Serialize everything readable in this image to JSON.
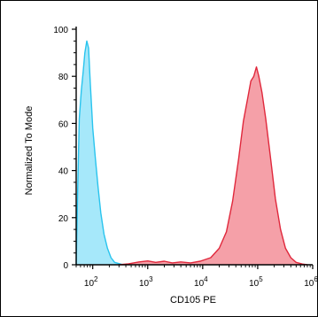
{
  "chart_data": {
    "type": "area",
    "title": "",
    "xlabel": "CD105 PE",
    "ylabel": "Normalized To Mode",
    "x_scale": "log",
    "xlim": [
      50,
      1000000
    ],
    "ylim": [
      0,
      100
    ],
    "y_ticks": [
      0,
      20,
      40,
      60,
      80,
      100
    ],
    "x_ticks": [
      {
        "base": "10",
        "exp": "2",
        "value": 100
      },
      {
        "base": "10",
        "exp": "3",
        "value": 1000
      },
      {
        "base": "10",
        "exp": "4",
        "value": 10000
      },
      {
        "base": "10",
        "exp": "5",
        "value": 100000
      },
      {
        "base": "10",
        "exp": "6",
        "value": 1000000
      }
    ],
    "grid": false,
    "legend": "none",
    "series": [
      {
        "color": "#29c4ee",
        "fill": "#a6e8fa",
        "points": [
          [
            50,
            0
          ],
          [
            53,
            30
          ],
          [
            57,
            62
          ],
          [
            62,
            74
          ],
          [
            67,
            82
          ],
          [
            72,
            90
          ],
          [
            78,
            95
          ],
          [
            84,
            92
          ],
          [
            90,
            78
          ],
          [
            100,
            58
          ],
          [
            112,
            45
          ],
          [
            125,
            33
          ],
          [
            140,
            22
          ],
          [
            160,
            13
          ],
          [
            185,
            7
          ],
          [
            215,
            3
          ],
          [
            250,
            1
          ],
          [
            300,
            0.5
          ],
          [
            360,
            0
          ]
        ]
      },
      {
        "color": "#e0283c",
        "fill": "#f5a0a8",
        "points": [
          [
            300,
            0
          ],
          [
            450,
            0.4
          ],
          [
            700,
            1.2
          ],
          [
            1000,
            1.6
          ],
          [
            1400,
            1
          ],
          [
            2000,
            1.5
          ],
          [
            2800,
            0.8
          ],
          [
            4000,
            1.2
          ],
          [
            6000,
            0.8
          ],
          [
            9000,
            1.5
          ],
          [
            14000,
            3
          ],
          [
            20000,
            7
          ],
          [
            27000,
            14
          ],
          [
            35000,
            27
          ],
          [
            45000,
            45
          ],
          [
            55000,
            61
          ],
          [
            65000,
            70
          ],
          [
            75000,
            78
          ],
          [
            85000,
            80
          ],
          [
            95000,
            84
          ],
          [
            105000,
            80
          ],
          [
            120000,
            73
          ],
          [
            140000,
            62
          ],
          [
            170000,
            46
          ],
          [
            210000,
            28
          ],
          [
            260000,
            15
          ],
          [
            320000,
            7
          ],
          [
            400000,
            3
          ],
          [
            500000,
            1
          ],
          [
            650000,
            0.3
          ],
          [
            800000,
            0
          ]
        ]
      }
    ]
  }
}
